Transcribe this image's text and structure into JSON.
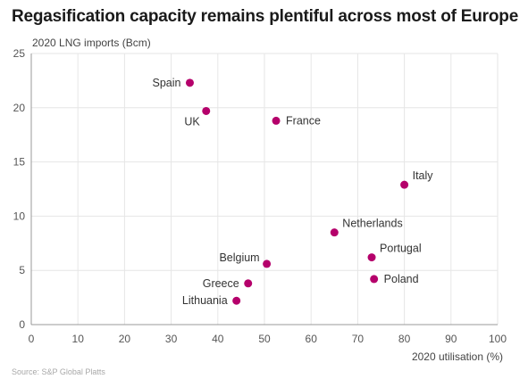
{
  "chart_data": {
    "type": "scatter",
    "title": "Regasification capacity remains plentiful across most of Europe",
    "xlabel": "2020 utilisation (%)",
    "ylabel": "2020 LNG imports (Bcm)",
    "xlim": [
      0,
      100
    ],
    "ylim": [
      0,
      25
    ],
    "xticks": [
      "0",
      "10",
      "20",
      "30",
      "40",
      "50",
      "60",
      "70",
      "80",
      "90",
      "100"
    ],
    "yticks": [
      "0",
      "5",
      "10",
      "15",
      "20",
      "25"
    ],
    "grid": true,
    "marker_color": "#b5006b",
    "points": [
      {
        "label": "Spain",
        "x": 34,
        "y": 22.3,
        "label_side": "left"
      },
      {
        "label": "UK",
        "x": 37.5,
        "y": 19.7,
        "label_side": "below-left"
      },
      {
        "label": "France",
        "x": 52.5,
        "y": 18.8,
        "label_side": "right"
      },
      {
        "label": "Italy",
        "x": 80,
        "y": 12.9,
        "label_side": "above-right"
      },
      {
        "label": "Netherlands",
        "x": 65,
        "y": 8.5,
        "label_side": "above-right"
      },
      {
        "label": "Portugal",
        "x": 73,
        "y": 6.2,
        "label_side": "above-right"
      },
      {
        "label": "Poland",
        "x": 73.5,
        "y": 4.2,
        "label_side": "right"
      },
      {
        "label": "Belgium",
        "x": 50.5,
        "y": 5.6,
        "label_side": "above-left"
      },
      {
        "label": "Greece",
        "x": 46.5,
        "y": 3.8,
        "label_side": "left"
      },
      {
        "label": "Lithuania",
        "x": 44,
        "y": 2.2,
        "label_side": "left"
      }
    ]
  },
  "source": "Source: S&P Global Platts"
}
